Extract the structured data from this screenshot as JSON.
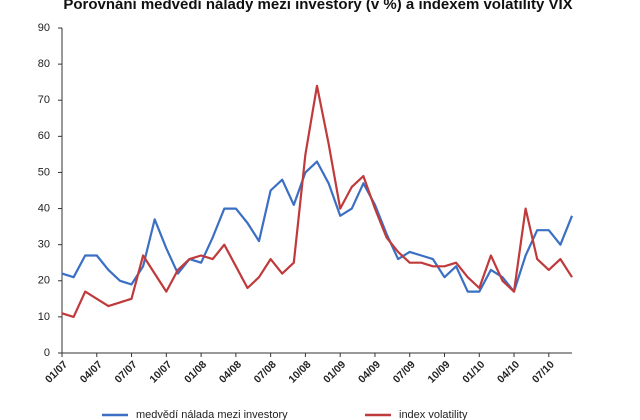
{
  "chart_data": {
    "type": "line",
    "title": "Porovnání medvědí nálady mezi investory (v %) a indexem volatility VIX",
    "categories": [
      "01/07",
      null,
      null,
      "04/07",
      null,
      null,
      "07/07",
      null,
      null,
      "10/07",
      null,
      null,
      "01/08",
      null,
      null,
      "04/08",
      null,
      null,
      "07/08",
      null,
      null,
      "10/08",
      null,
      null,
      "01/09",
      null,
      null,
      "04/09",
      null,
      null,
      "07/09",
      null,
      null,
      "10/09",
      null,
      null,
      "01/10",
      null,
      null,
      "04/10",
      null,
      null,
      "07/10",
      null,
      null
    ],
    "series": [
      {
        "name": "medvědí nálada mezi investory",
        "color": "#3a6fc4",
        "values": [
          22,
          21,
          27,
          27,
          23,
          20,
          19,
          24,
          37,
          29,
          22,
          26,
          25,
          32,
          40,
          40,
          36,
          31,
          45,
          48,
          41,
          50,
          53,
          47,
          38,
          40,
          47,
          41,
          33,
          26,
          28,
          27,
          26,
          21,
          24,
          17,
          17,
          23,
          21,
          17,
          27,
          34,
          34,
          30,
          38
        ]
      },
      {
        "name": "index volatility",
        "color": "#c0393b",
        "values": [
          11,
          10,
          17,
          15,
          13,
          14,
          15,
          27,
          22,
          17,
          23,
          26,
          27,
          26,
          30,
          24,
          18,
          21,
          26,
          22,
          25,
          55,
          74,
          58,
          40,
          46,
          49,
          40,
          32,
          28,
          25,
          25,
          24,
          24,
          25,
          21,
          18,
          27,
          20,
          17,
          40,
          26,
          23,
          26,
          21
        ]
      }
    ],
    "ylim": [
      0,
      90
    ],
    "yticks": [
      0,
      10,
      20,
      30,
      40,
      50,
      60,
      70,
      80,
      90
    ],
    "legend": "bottom"
  }
}
